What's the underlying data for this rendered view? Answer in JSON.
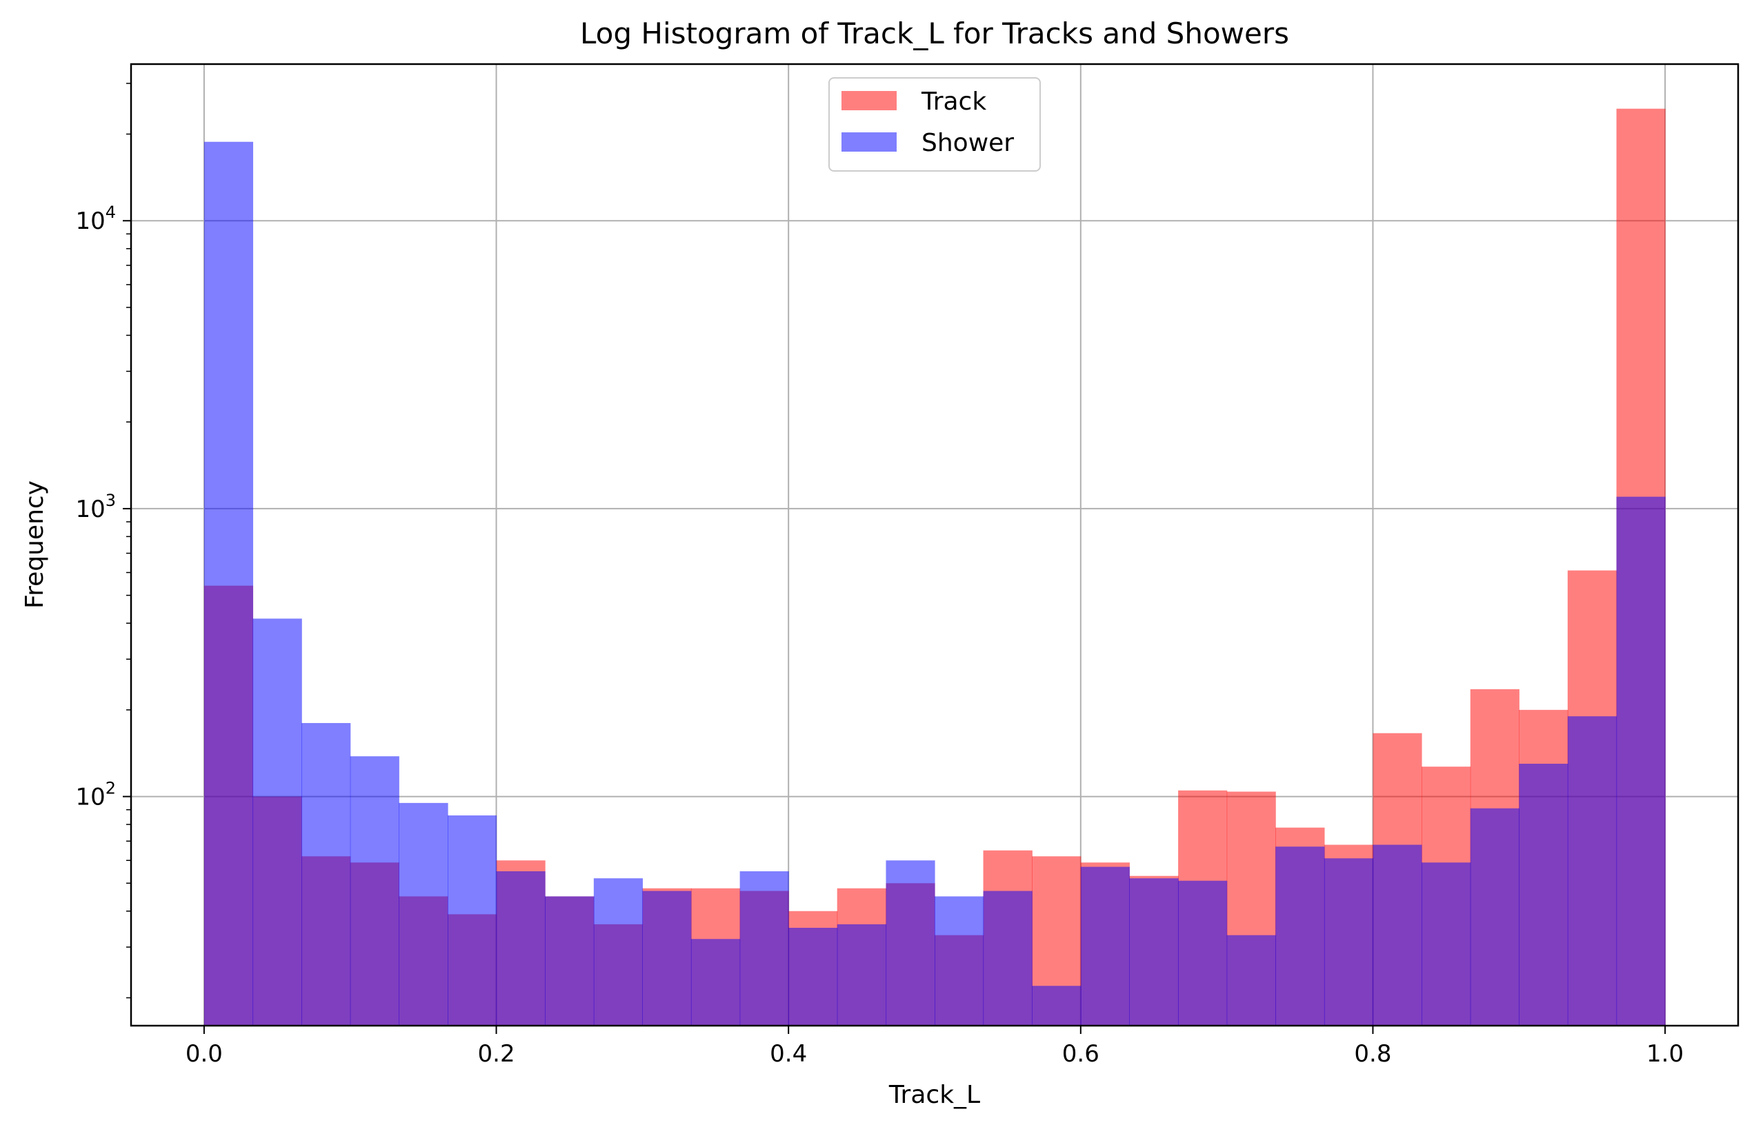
{
  "chart_data": {
    "type": "bar",
    "title": "Log Histogram of Track_L for Tracks and Showers",
    "xlabel": "Track_L",
    "ylabel": "Frequency",
    "xlim": [
      -0.05,
      1.05
    ],
    "ylim": [
      16,
      35000
    ],
    "yscale": "log",
    "grid": true,
    "legend_position": "top-center",
    "x_ticks": [
      "0.0",
      "0.2",
      "0.4",
      "0.6",
      "0.8",
      "1.0"
    ],
    "y_ticks": [
      {
        "value": 100,
        "base": "10",
        "exp": "2"
      },
      {
        "value": 1000,
        "base": "10",
        "exp": "3"
      },
      {
        "value": 10000,
        "base": "10",
        "exp": "4"
      }
    ],
    "bin_edges": [
      0.0,
      0.0333,
      0.0667,
      0.1,
      0.1333,
      0.1667,
      0.2,
      0.2333,
      0.2667,
      0.3,
      0.3333,
      0.3667,
      0.4,
      0.4333,
      0.4667,
      0.5,
      0.5333,
      0.5667,
      0.6,
      0.6333,
      0.6667,
      0.7,
      0.7333,
      0.7667,
      0.8,
      0.8333,
      0.8667,
      0.9,
      0.9333,
      0.9667,
      1.0
    ],
    "series": [
      {
        "name": "Track",
        "color": "#ff0000",
        "opacity": 0.5,
        "values": [
          540,
          100,
          62,
          59,
          45,
          39,
          60,
          45,
          36,
          48,
          48,
          47,
          40,
          48,
          50,
          33,
          65,
          62,
          59,
          53,
          105,
          104,
          78,
          68,
          166,
          127,
          236,
          200,
          610,
          24500
        ]
      },
      {
        "name": "Shower",
        "color": "#0000ff",
        "opacity": 0.5,
        "values": [
          18800,
          415,
          180,
          138,
          95,
          86,
          55,
          45,
          52,
          47,
          32,
          55,
          35,
          36,
          60,
          45,
          47,
          22,
          57,
          52,
          51,
          33,
          67,
          61,
          68,
          59,
          91,
          130,
          190,
          1100
        ]
      }
    ]
  }
}
